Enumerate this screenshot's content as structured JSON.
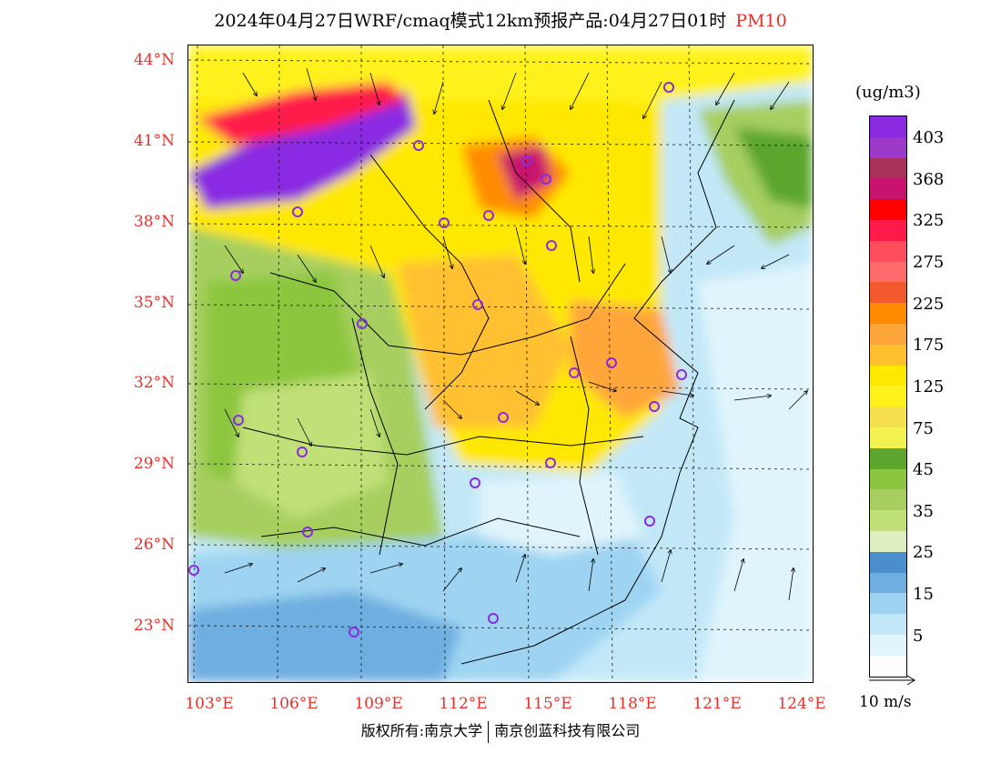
{
  "title": "2024年04月27日WRF/cmaq模式12km预报产品:04月27日01时",
  "product_tag": "PM10",
  "latitude_labels": [
    "44°N",
    "41°N",
    "38°N",
    "35°N",
    "32°N",
    "29°N",
    "26°N",
    "23°N"
  ],
  "longitude_labels": [
    "103°E",
    "106°E",
    "109°E",
    "112°E",
    "115°E",
    "118°E",
    "121°E",
    "124°E"
  ],
  "legend": {
    "unit": "(ug/m3)",
    "colors": [
      "#8a2be2",
      "#9c39c8",
      "#a8325c",
      "#c8146e",
      "#ff0000",
      "#ff1a4a",
      "#ff4f5f",
      "#ff6b6b",
      "#f25a2d",
      "#ff8c00",
      "#ffa63a",
      "#ffc030",
      "#ffe800",
      "#fff21a",
      "#f5e04f",
      "#f2f250",
      "#5ca62e",
      "#8cc63e",
      "#a6cf5e",
      "#c2e078",
      "#dfeebf",
      "#4a8fcc",
      "#6eaee0",
      "#9ed4f2",
      "#c2e8f8",
      "#e0f4fc",
      "#ffffff"
    ],
    "labels": [
      "403",
      "368",
      "325",
      "275",
      "225",
      "175",
      "125",
      "75",
      "45",
      "35",
      "25",
      "15",
      "5"
    ]
  },
  "vector_scale": {
    "label": "10 m/s"
  },
  "footer": {
    "left": "版权所有:南京大学",
    "right": "南京创蓝科技有限公司"
  }
}
